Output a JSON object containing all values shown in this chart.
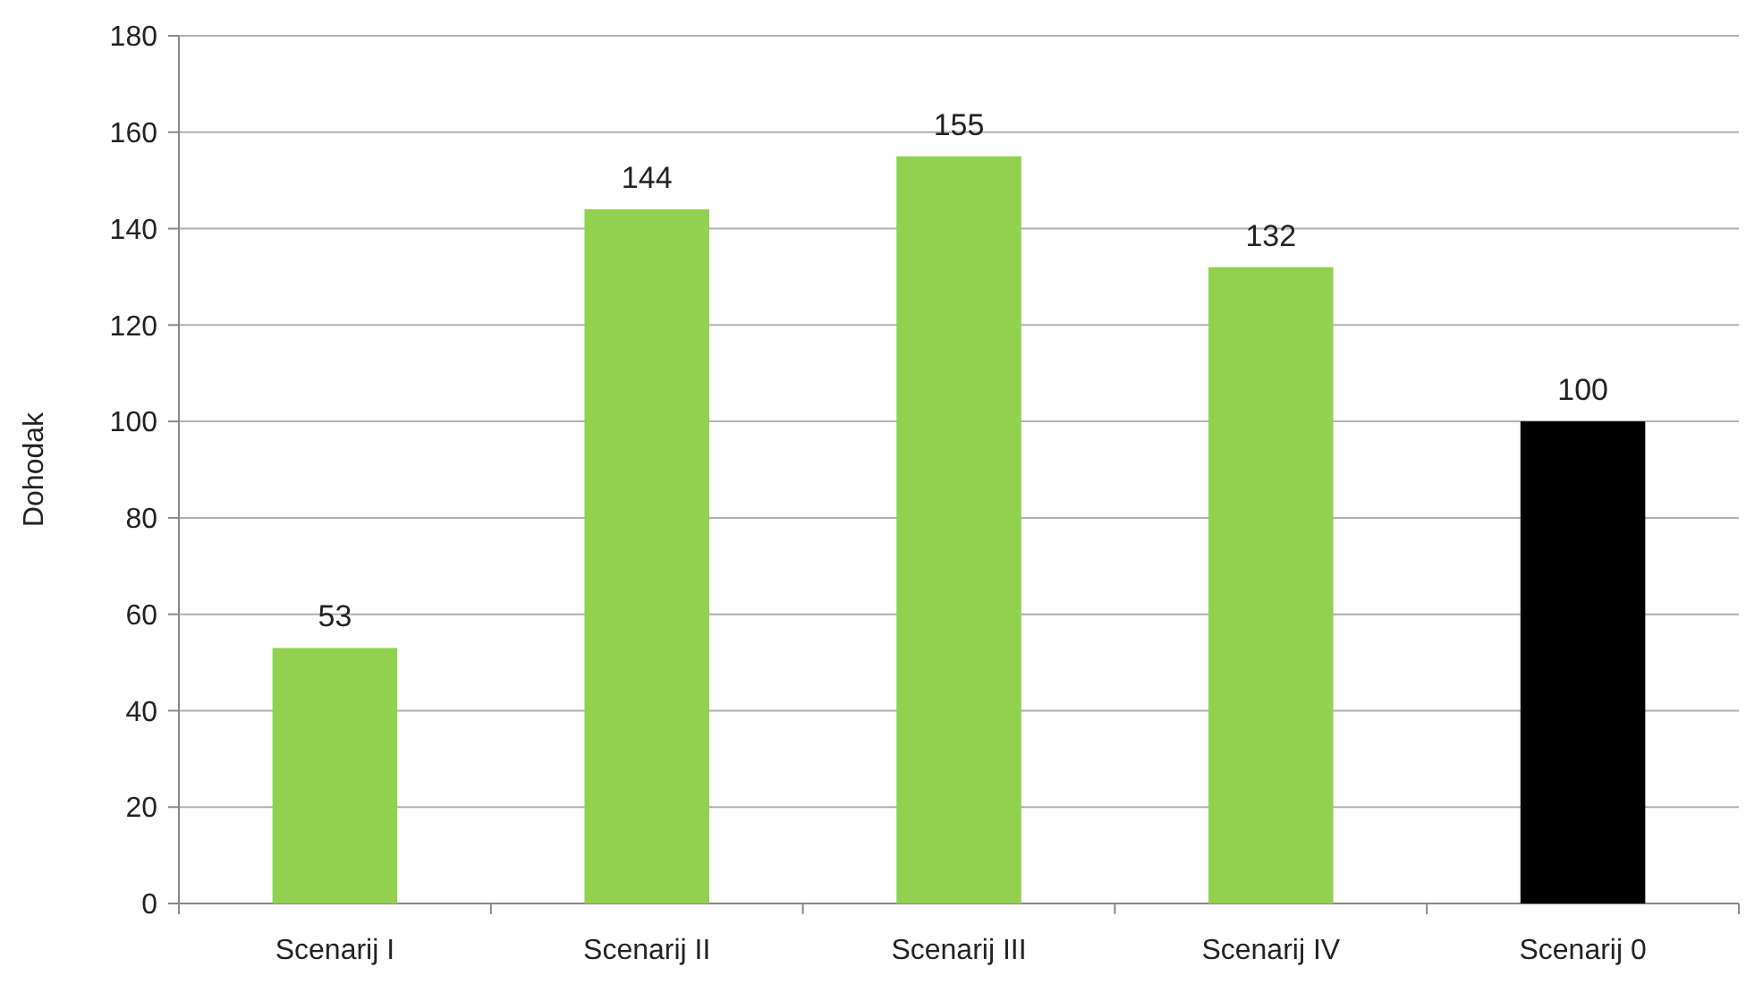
{
  "chart_data": {
    "type": "bar",
    "ylabel": "Dohodak",
    "categories": [
      "Scenarij I",
      "Scenarij II",
      "Scenarij III",
      "Scenarij IV",
      "Scenarij 0"
    ],
    "values": [
      53,
      144,
      155,
      132,
      100
    ],
    "colors": [
      "#92d050",
      "#92d050",
      "#92d050",
      "#92d050",
      "#000000"
    ],
    "ylim": [
      0,
      180
    ],
    "yticks": [
      0,
      20,
      40,
      60,
      80,
      100,
      120,
      140,
      160,
      180
    ],
    "grid": "y",
    "data_labels": true
  }
}
